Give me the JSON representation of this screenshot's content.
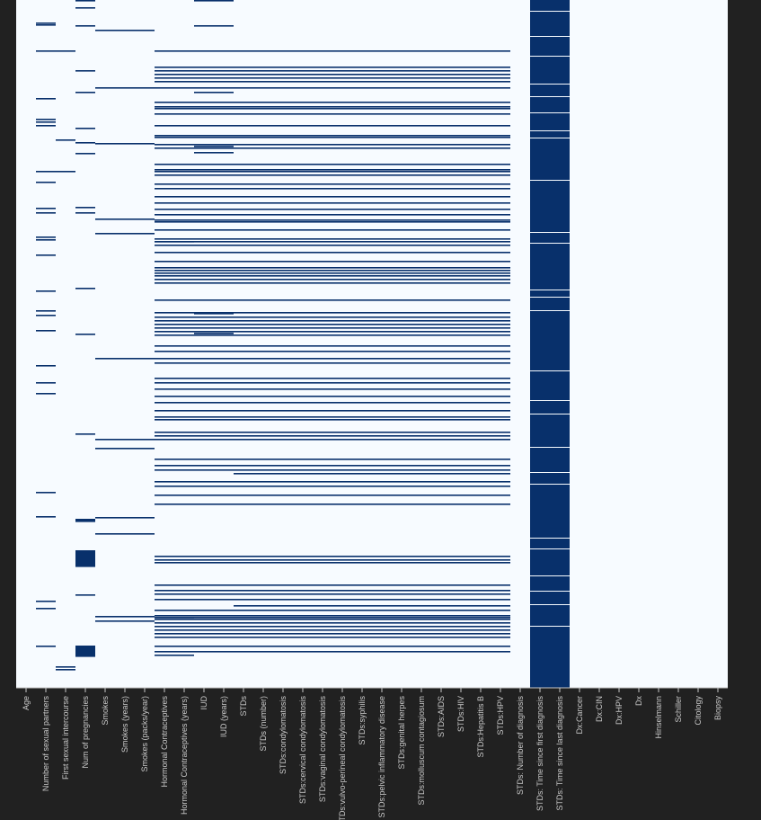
{
  "chart_data": {
    "type": "heatmap",
    "title": "",
    "xlabel": "",
    "ylabel": "",
    "description_values": "cells = 1 where value is missing, 0 otherwise",
    "n_rows": 765,
    "colors": {
      "missing": "#08306b",
      "present": "#f7fbff",
      "background": "#212121",
      "tick": "#c8c8c8"
    },
    "columns": [
      "Age",
      "Number of sexual partners",
      "First sexual intercourse",
      "Num of pregnancies",
      "Smokes",
      "Smokes (years)",
      "Smokes (packs/year)",
      "Hormonal Contraceptives",
      "Hormonal Contraceptives (years)",
      "IUD",
      "IUD (years)",
      "STDs",
      "STDs (number)",
      "STDs:condylomatosis",
      "STDs:cervical condylomatosis",
      "STDs:vaginal condylomatosis",
      "STDs:vulvo-perineal condylomatosis",
      "STDs:syphilis",
      "STDs:pelvic inflammatory disease",
      "STDs:genital herpes",
      "STDs:molluscum contagiosum",
      "STDs:AIDS",
      "STDs:HIV",
      "STDs:Hepatitis B",
      "STDs:HPV",
      "STDs: Number of diagnosis",
      "STDs: Time since first diagnosis",
      "STDs: Time since last diagnosis",
      "Dx:Cancer",
      "Dx:CIN",
      "Dx:HPV",
      "Dx",
      "Hinselmann",
      "Schiller",
      "Citology",
      "Biopsy"
    ],
    "missing_groups": [
      {
        "cols": [
          1
        ],
        "rows": [
          25,
          27,
          56,
          109,
          132,
          135,
          139,
          190,
          202,
          231,
          236,
          263,
          266,
          283,
          323,
          345,
          350,
          367,
          406,
          425,
          437,
          547,
          574,
          668,
          676,
          718
        ]
      },
      {
        "cols": [
          2
        ],
        "rows": [
          56,
          155,
          190,
          741,
          744
        ]
      },
      {
        "cols": [
          3
        ],
        "rows": [
          0,
          8,
          28,
          78,
          102,
          142,
          158,
          170,
          230,
          236,
          320,
          371,
          482,
          577,
          578,
          579,
          612,
          613,
          614,
          615,
          616,
          617,
          618,
          619,
          620,
          621,
          622,
          623,
          624,
          625,
          626,
          627,
          628,
          629,
          661,
          718,
          719,
          720,
          721,
          722,
          723,
          724,
          725,
          726,
          727,
          728,
          729
        ]
      },
      {
        "cols": [
          4,
          5,
          6
        ],
        "rows": [
          33,
          97,
          159,
          243,
          259,
          398,
          488,
          498,
          575,
          593,
          685,
          690
        ]
      },
      {
        "cols": [
          7,
          8,
          9,
          10,
          11,
          12,
          13,
          14,
          15,
          16,
          17,
          18,
          19,
          20,
          21,
          22,
          23,
          24
        ],
        "rows": [
          56,
          74,
          78,
          82,
          86,
          90,
          97,
          113,
          118,
          120,
          126,
          139,
          150,
          152,
          160,
          164,
          182,
          188,
          190,
          194,
          204,
          209,
          218,
          225,
          232,
          238,
          244,
          246,
          255,
          265,
          268,
          272,
          280,
          290,
          297,
          300,
          303,
          306,
          310,
          314,
          333,
          347,
          352,
          356,
          360,
          364,
          368,
          372,
          384,
          390,
          398,
          403,
          420,
          425,
          432,
          440,
          447,
          456,
          463,
          466,
          480,
          484,
          488,
          510,
          517,
          522,
          535,
          540,
          550,
          560,
          618,
          622,
          625,
          650,
          656,
          660,
          666,
          678,
          684,
          686,
          688,
          692,
          696,
          700,
          704,
          708,
          718,
          724
        ]
      },
      {
        "cols": [
          9,
          10
        ],
        "rows": [
          0,
          28,
          102,
          162,
          169,
          348,
          370
        ]
      },
      {
        "cols": [
          7,
          8
        ],
        "rows": [
          268,
          686,
          728
        ]
      },
      {
        "cols": [
          11,
          12,
          13,
          14,
          15,
          16,
          17,
          18,
          19,
          20,
          21,
          22,
          23,
          24
        ],
        "rows": [
          526,
          673
        ]
      }
    ],
    "mostly_missing_groups": [
      {
        "cols": [
          26,
          27
        ],
        "present_rows": [
          12,
          40,
          62,
          93,
          107,
          125,
          145,
          153,
          200,
          258,
          270,
          322,
          330,
          345,
          412,
          445,
          460,
          497,
          525,
          538,
          598,
          610,
          640,
          657,
          672,
          696
        ]
      }
    ]
  }
}
